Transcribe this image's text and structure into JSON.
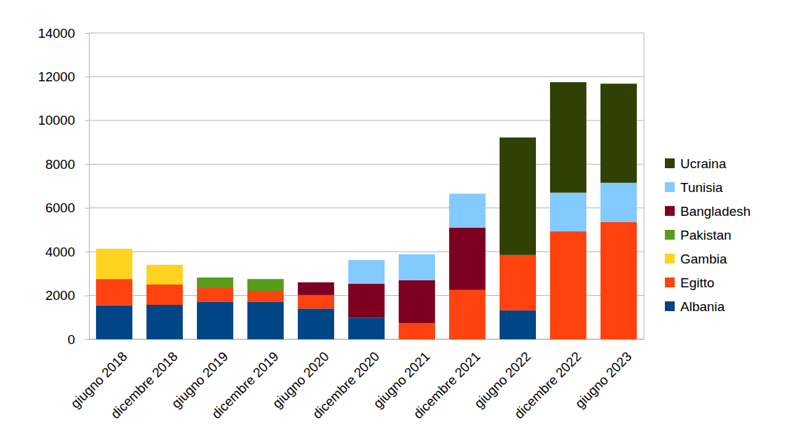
{
  "chart_data": {
    "type": "bar",
    "stacked": true,
    "grid": true,
    "legend": "right",
    "categories": [
      "giugno 2018",
      "dicembre 2018",
      "giugno 2019",
      "dicembre 2019",
      "giugno 2020",
      "dicembre 2020",
      "giugno 2021",
      "dicembre 2021",
      "giugno 2022",
      "dicembre 2022",
      "giugno 2023"
    ],
    "ylim": [
      0,
      14000
    ],
    "yticks": [
      0,
      2000,
      4000,
      6000,
      8000,
      10000,
      12000,
      14000
    ],
    "series": [
      {
        "name": "Albania",
        "color": "#004586",
        "values": [
          1550,
          1570,
          1700,
          1700,
          1400,
          980,
          null,
          null,
          1320,
          null,
          null
        ]
      },
      {
        "name": "Egitto",
        "color": "#ff420e",
        "values": [
          1200,
          930,
          640,
          510,
          620,
          null,
          740,
          2250,
          2530,
          4930,
          5350
        ]
      },
      {
        "name": "Gambia",
        "color": "#ffd320",
        "values": [
          1380,
          900,
          null,
          null,
          null,
          null,
          null,
          null,
          null,
          null,
          null
        ]
      },
      {
        "name": "Pakistan",
        "color": "#579d1c",
        "values": [
          null,
          null,
          480,
          540,
          null,
          null,
          null,
          null,
          null,
          null,
          null
        ]
      },
      {
        "name": "Bangladesh",
        "color": "#7e0021",
        "values": [
          null,
          null,
          null,
          null,
          580,
          1550,
          1960,
          2850,
          null,
          null,
          null
        ]
      },
      {
        "name": "Tunisia",
        "color": "#83caff",
        "values": [
          null,
          null,
          null,
          null,
          null,
          1090,
          1180,
          1550,
          null,
          1770,
          1800
        ]
      },
      {
        "name": "Ucraina",
        "color": "#314004",
        "values": [
          null,
          null,
          null,
          null,
          null,
          null,
          null,
          null,
          5370,
          5050,
          4530
        ]
      }
    ]
  }
}
